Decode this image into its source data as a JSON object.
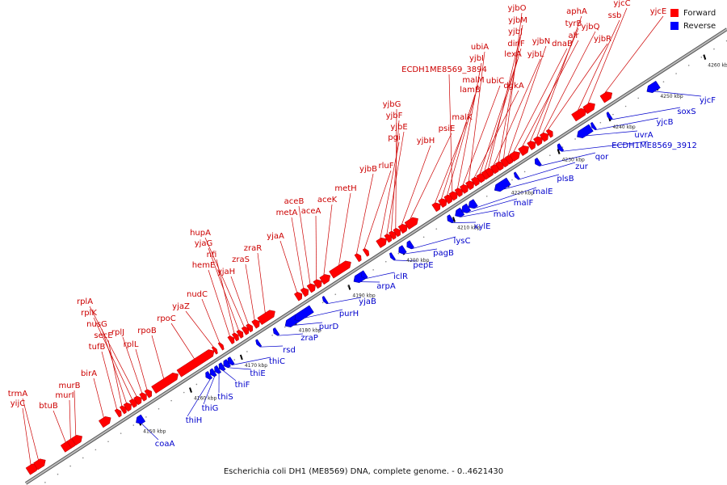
{
  "caption": "Escherichia coli DH1 (ME8569) DNA, complete genome. - 0..4621430",
  "legend": [
    {
      "label": "Forward",
      "color": "#ff0000"
    },
    {
      "label": "Reverse",
      "color": "#0000ff"
    }
  ],
  "colors": {
    "forward": "#ff0000",
    "reverse": "#0000ff",
    "forward_label": "#cc0000",
    "reverse_label": "#0000cc",
    "backbone": "#888888"
  },
  "axis_ticks": [
    "4150 kbp",
    "4160 kbp",
    "4170 kbp",
    "4180 kbp",
    "4190 kbp",
    "4200 kbp",
    "4210 kbp",
    "4220 kbp",
    "4230 kbp",
    "4240 kbp",
    "4250 kbp",
    "4260 kbp"
  ],
  "forward_genes": [
    "yijC",
    "trmA",
    "btuB",
    "murI",
    "murB",
    "birA",
    "tufB",
    "secE",
    "nusG",
    "rplK",
    "rplA",
    "rplJ",
    "rplL",
    "rpoB",
    "rpoC",
    "yjaZ",
    "nudC",
    "hemE",
    "nfi",
    "yjaG",
    "hupA",
    "yjaH",
    "zraS",
    "zraR",
    "yjaA",
    "metA",
    "aceB",
    "aceA",
    "aceK",
    "metH",
    "yjbB",
    "rluF",
    "pgi",
    "yjbE",
    "yjbF",
    "yjbG",
    "yjbH",
    "psiE",
    "malK",
    "lamB",
    "malM",
    "ECDH1ME8569_3894",
    "yjbI",
    "ubiC",
    "ubiA",
    "dgkA",
    "lexA",
    "dinF",
    "yjbJ",
    "yjbL",
    "yjbM",
    "yjbO",
    "yjbN",
    "dnaB",
    "alr",
    "tyrB",
    "aphA",
    "yjbQ",
    "yjbR",
    "ssb",
    "yjcC",
    "yjcE"
  ],
  "reverse_genes": [
    "coaA",
    "thiH",
    "thiG",
    "thiS",
    "thiF",
    "thiE",
    "thiC",
    "rsd",
    "zraP",
    "purD",
    "purH",
    "yjaB",
    "arpA",
    "iclR",
    "pepE",
    "pagB",
    "lysC",
    "xylE",
    "malG",
    "malF",
    "malE",
    "plsB",
    "zur",
    "qor",
    "ECDH1ME8569_3912",
    "uvrA",
    "yjcB",
    "soxS",
    "yjcF"
  ]
}
